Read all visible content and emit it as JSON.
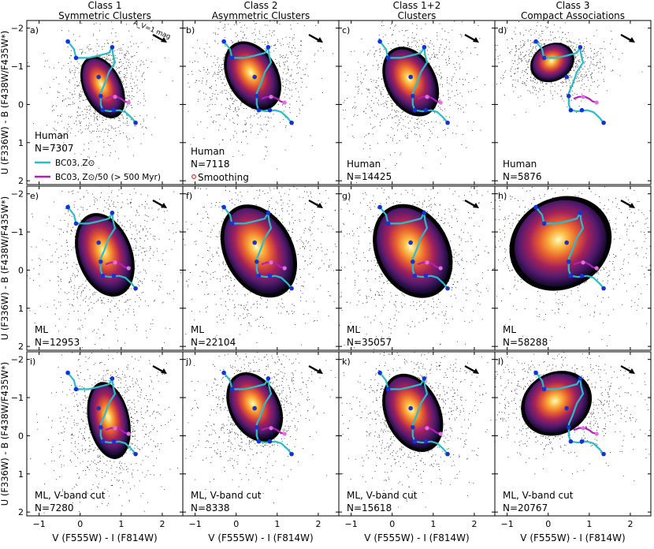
{
  "figure": {
    "xlabel": "V (F555W) - I (F814W)",
    "ylabel": "U (F336W) - B (F438W/F435W*)",
    "reddening_label": "A_V=1 mag",
    "xticks": [
      "-1",
      "0",
      "1",
      "2"
    ],
    "yticks": [
      "-2",
      "-1",
      "0",
      "1",
      "2"
    ],
    "columns": [
      {
        "line1": "Class 1",
        "line2": "Symmetric Clusters"
      },
      {
        "line1": "Class 2",
        "line2": "Asymmetric Clusters"
      },
      {
        "line1": "Class 1+2",
        "line2": "Clusters"
      },
      {
        "line1": "Class 3",
        "line2": "Compact Associations"
      }
    ],
    "legend": {
      "bc03_solar": "BC03, Z⊙",
      "bc03_sub": "BC03, Z⊙/50 (> 500 Myr)",
      "smoothing": "Smoothing"
    }
  },
  "chart_data": {
    "type": "scatter",
    "xlim": [
      -1.3,
      2.5
    ],
    "ylim": [
      2.1,
      -2.2
    ],
    "tracks": {
      "bc03_solar_color": "#2bbcc8",
      "bc03_sub_color": "#b51db8",
      "bc03_solar": [
        [
          -0.3,
          -1.65
        ],
        [
          -0.15,
          -1.45
        ],
        [
          -0.1,
          -1.22
        ],
        [
          0.2,
          -1.22
        ],
        [
          0.45,
          -1.28
        ],
        [
          0.7,
          -1.35
        ],
        [
          0.78,
          -1.5
        ],
        [
          0.8,
          -1.3
        ],
        [
          0.85,
          -1.1
        ],
        [
          0.7,
          -0.85
        ],
        [
          0.6,
          -0.55
        ],
        [
          0.5,
          -0.3
        ],
        [
          0.5,
          0
        ],
        [
          0.55,
          0.15
        ],
        [
          0.72,
          0.18
        ],
        [
          0.95,
          0.15
        ],
        [
          1.1,
          0.2
        ],
        [
          1.25,
          0.35
        ],
        [
          1.35,
          0.48
        ]
      ],
      "bc03_sub": [
        [
          0.62,
          -0.15
        ],
        [
          0.75,
          -0.2
        ],
        [
          0.9,
          -0.2
        ],
        [
          1.0,
          -0.15
        ],
        [
          1.08,
          -0.08
        ],
        [
          1.18,
          -0.05
        ]
      ],
      "age_points": [
        [
          -0.3,
          -1.65
        ],
        [
          -0.1,
          -1.22
        ],
        [
          0.78,
          -1.5
        ],
        [
          0.45,
          -0.72
        ],
        [
          0.5,
          -0.22
        ],
        [
          0.55,
          0.15
        ],
        [
          0.82,
          0.15
        ],
        [
          1.35,
          0.48
        ]
      ],
      "sub_points": [
        [
          0.85,
          -0.2
        ],
        [
          1.18,
          -0.05
        ]
      ]
    },
    "panels": [
      {
        "id": "a",
        "label": "a)",
        "sample": "Human",
        "n": "N=7307",
        "kde": {
          "cx": 0.55,
          "cy": -0.45,
          "rx": 0.42,
          "ry": 0.8,
          "rot": 25,
          "spread": 0.5
        }
      },
      {
        "id": "b",
        "label": "b)",
        "sample": "Human",
        "n": "N=7118",
        "kde": {
          "cx": 0.4,
          "cy": -0.75,
          "rx": 0.55,
          "ry": 0.9,
          "rot": 30,
          "spread": 0.55
        }
      },
      {
        "id": "c",
        "label": "c)",
        "sample": "Human",
        "n": "N=14425",
        "kde": {
          "cx": 0.45,
          "cy": -0.6,
          "rx": 0.55,
          "ry": 0.9,
          "rot": 28,
          "spread": 0.55
        }
      },
      {
        "id": "d",
        "label": "d)",
        "sample": "Human",
        "n": "N=5876",
        "kde": {
          "cx": 0.1,
          "cy": -1.1,
          "rx": 0.5,
          "ry": 0.45,
          "rot": 30,
          "spread": 0.6
        }
      },
      {
        "id": "e",
        "label": "e)",
        "sample": "ML",
        "n": "N=12953",
        "kde": {
          "cx": 0.6,
          "cy": -0.4,
          "rx": 0.6,
          "ry": 1.05,
          "rot": 20,
          "spread": 0.55
        }
      },
      {
        "id": "f",
        "label": "f)",
        "sample": "ML",
        "n": "N=22104",
        "kde": {
          "cx": 0.55,
          "cy": -0.5,
          "rx": 0.75,
          "ry": 1.2,
          "rot": 28,
          "spread": 0.6
        }
      },
      {
        "id": "g",
        "label": "g)",
        "sample": "ML",
        "n": "N=35057",
        "kde": {
          "cx": 0.5,
          "cy": -0.5,
          "rx": 0.8,
          "ry": 1.2,
          "rot": 28,
          "spread": 0.6
        }
      },
      {
        "id": "h",
        "label": "h)",
        "sample": "ML",
        "n": "N=58288",
        "kde": {
          "cx": 0.3,
          "cy": -0.7,
          "rx": 1.15,
          "ry": 1.1,
          "rot": 30,
          "spread": 0.65
        }
      },
      {
        "id": "i",
        "label": "i)",
        "sample": "ML, V-band cut",
        "n": "N=7280",
        "kde": {
          "cx": 0.7,
          "cy": -0.4,
          "rx": 0.45,
          "ry": 0.95,
          "rot": 12,
          "spread": 0.5
        }
      },
      {
        "id": "j",
        "label": "j)",
        "sample": "ML, V-band cut",
        "n": "N=8338",
        "kde": {
          "cx": 0.45,
          "cy": -0.75,
          "rx": 0.55,
          "ry": 0.9,
          "rot": 28,
          "spread": 0.55
        }
      },
      {
        "id": "k",
        "label": "k)",
        "sample": "ML, V-band cut",
        "n": "N=15618",
        "kde": {
          "cx": 0.5,
          "cy": -0.6,
          "rx": 0.6,
          "ry": 1.0,
          "rot": 25,
          "spread": 0.55
        }
      },
      {
        "id": "l",
        "label": "l)",
        "sample": "ML, V-band cut",
        "n": "N=20767",
        "kde": {
          "cx": 0.2,
          "cy": -0.85,
          "rx": 0.8,
          "ry": 0.75,
          "rot": 30,
          "spread": 0.6
        }
      }
    ]
  }
}
